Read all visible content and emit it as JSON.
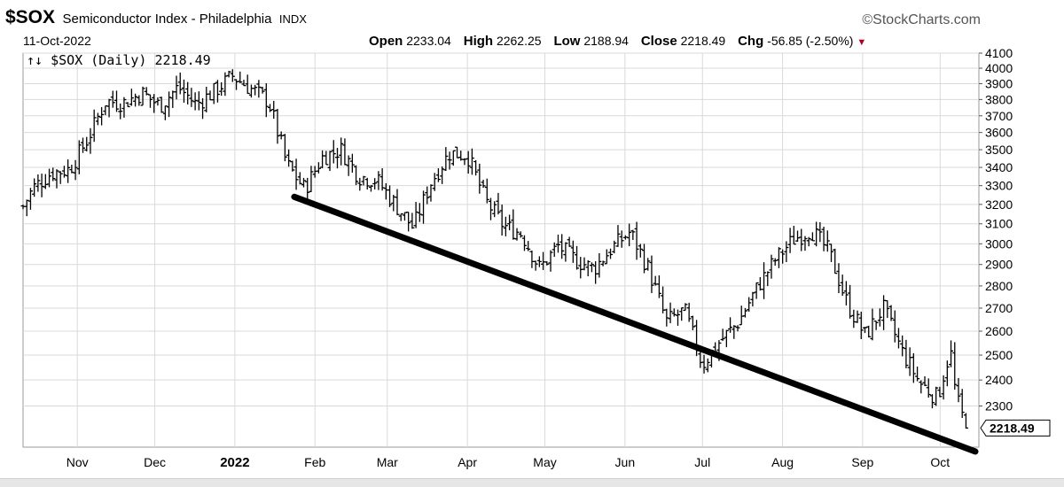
{
  "header": {
    "symbol": "$SOX",
    "description": "Semiconductor Index - Philadelphia",
    "exchange": "INDX",
    "date": "11-Oct-2022",
    "brand": "©StockCharts.com",
    "open_label": "Open",
    "open": "2233.04",
    "high_label": "High",
    "high": "2262.25",
    "low_label": "Low",
    "low": "2188.94",
    "close_label": "Close",
    "close": "2218.49",
    "chg_label": "Chg",
    "chg": "-56.85 (-2.50%)",
    "chg_icon": "down-triangle-icon"
  },
  "legend": {
    "text": "$SOX (Daily) 2218.49",
    "icon": "ohlc-bars-icon"
  },
  "colors": {
    "bars": "#000000",
    "trendline": "#000000",
    "grid": "#d9d9d9",
    "down": "#b00020"
  },
  "chart_data": {
    "type": "ohlc",
    "title": "$SOX Semiconductor Index - Philadelphia",
    "ylim": [
      2150,
      4100
    ],
    "y_ticks": [
      4100,
      4000,
      3900,
      3800,
      3700,
      3600,
      3500,
      3400,
      3300,
      3200,
      3100,
      3000,
      2900,
      2800,
      2700,
      2600,
      2500,
      2400,
      2300
    ],
    "y_scale": "log",
    "x_ticks": [
      "Nov",
      "Dec",
      "2022",
      "Feb",
      "Mar",
      "Apr",
      "May",
      "Jun",
      "Jul",
      "Aug",
      "Sep",
      "Oct"
    ],
    "last_value_label": "2218.49",
    "grid": true,
    "series": [
      {
        "type": "close",
        "points": [
          [
            "2021-10-11",
            3190
          ],
          [
            "2021-10-15",
            3290
          ],
          [
            "2021-10-22",
            3370
          ],
          [
            "2021-10-29",
            3390
          ],
          [
            "2021-11-05",
            3560
          ],
          [
            "2021-11-12",
            3790
          ],
          [
            "2021-11-19",
            3780
          ],
          [
            "2021-11-26",
            3840
          ],
          [
            "2021-12-03",
            3760
          ],
          [
            "2021-12-10",
            3880
          ],
          [
            "2021-12-17",
            3770
          ],
          [
            "2021-12-24",
            3850
          ],
          [
            "2021-12-31",
            3950
          ],
          [
            "2022-01-07",
            3870
          ],
          [
            "2022-01-14",
            3790
          ],
          [
            "2022-01-21",
            3420
          ],
          [
            "2022-01-28",
            3280
          ],
          [
            "2022-02-04",
            3460
          ],
          [
            "2022-02-11",
            3500
          ],
          [
            "2022-02-18",
            3350
          ],
          [
            "2022-02-25",
            3330
          ],
          [
            "2022-03-04",
            3200
          ],
          [
            "2022-03-11",
            3080
          ],
          [
            "2022-03-18",
            3320
          ],
          [
            "2022-03-25",
            3480
          ],
          [
            "2022-04-01",
            3470
          ],
          [
            "2022-04-08",
            3220
          ],
          [
            "2022-04-15",
            3090
          ],
          [
            "2022-04-22",
            3050
          ],
          [
            "2022-04-29",
            2880
          ],
          [
            "2022-05-06",
            2990
          ],
          [
            "2022-05-13",
            2920
          ],
          [
            "2022-05-20",
            2880
          ],
          [
            "2022-05-27",
            2980
          ],
          [
            "2022-06-03",
            3060
          ],
          [
            "2022-06-10",
            2880
          ],
          [
            "2022-06-17",
            2640
          ],
          [
            "2022-06-24",
            2690
          ],
          [
            "2022-07-01",
            2460
          ],
          [
            "2022-07-08",
            2560
          ],
          [
            "2022-07-15",
            2640
          ],
          [
            "2022-07-22",
            2790
          ],
          [
            "2022-07-29",
            2920
          ],
          [
            "2022-08-05",
            3020
          ],
          [
            "2022-08-12",
            3070
          ],
          [
            "2022-08-19",
            2960
          ],
          [
            "2022-08-26",
            2720
          ],
          [
            "2022-09-02",
            2580
          ],
          [
            "2022-09-09",
            2700
          ],
          [
            "2022-09-16",
            2520
          ],
          [
            "2022-09-23",
            2390
          ],
          [
            "2022-09-30",
            2330
          ],
          [
            "2022-10-05",
            2520
          ],
          [
            "2022-10-07",
            2340
          ],
          [
            "2022-10-11",
            2218.49
          ]
        ]
      },
      {
        "type": "trendline",
        "points": [
          [
            "2022-01-24",
            3240
          ],
          [
            "2022-10-16",
            2130
          ]
        ]
      }
    ]
  }
}
